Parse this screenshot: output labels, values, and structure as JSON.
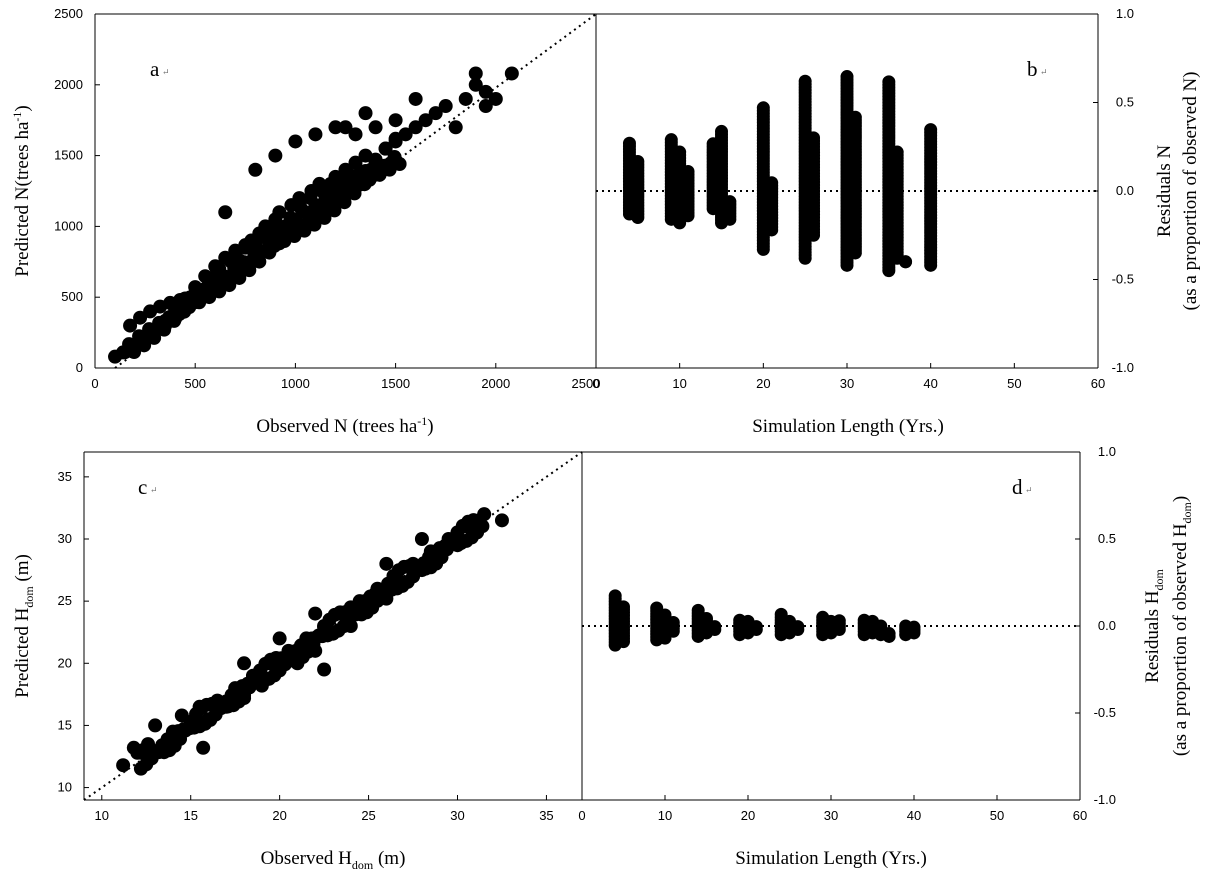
{
  "chart_data": [
    {
      "id": "a",
      "type": "scatter",
      "panel_label": "a",
      "xlabel": "Observed N (trees ha",
      "xlabel_sup": "-1",
      "xlabel_end": ")",
      "ylabel": "Predicted N(trees ha",
      "ylabel_sup": "-1",
      "ylabel_end": ")",
      "xlim": [
        0,
        2500
      ],
      "ylim": [
        0,
        2500
      ],
      "xticks": [
        "0",
        "500",
        "1000",
        "1500",
        "2000",
        "2500"
      ],
      "yticks": [
        "0",
        "500",
        "1000",
        "1500",
        "2000",
        "2500"
      ],
      "reference_line": {
        "style": "dotted",
        "from": [
          100,
          0
        ],
        "to": [
          2500,
          2500
        ]
      },
      "points": [
        [
          100,
          80
        ],
        [
          140,
          110
        ],
        [
          180,
          150
        ],
        [
          220,
          190
        ],
        [
          260,
          230
        ],
        [
          300,
          260
        ],
        [
          350,
          300
        ],
        [
          400,
          350
        ],
        [
          420,
          380
        ],
        [
          450,
          430
        ],
        [
          480,
          460
        ],
        [
          500,
          520
        ],
        [
          520,
          500
        ],
        [
          550,
          560
        ],
        [
          580,
          600
        ],
        [
          600,
          650
        ],
        [
          620,
          700
        ],
        [
          650,
          640
        ],
        [
          680,
          750
        ],
        [
          700,
          800
        ],
        [
          720,
          760
        ],
        [
          750,
          850
        ],
        [
          780,
          900
        ],
        [
          800,
          870
        ],
        [
          820,
          950
        ],
        [
          850,
          1000
        ],
        [
          880,
          960
        ],
        [
          900,
          1050
        ],
        [
          920,
          1100
        ],
        [
          950,
          1000
        ],
        [
          980,
          1150
        ],
        [
          1000,
          1050
        ],
        [
          1020,
          1200
        ],
        [
          1050,
          1100
        ],
        [
          1080,
          1250
        ],
        [
          1100,
          1150
        ],
        [
          1120,
          1300
        ],
        [
          1150,
          1200
        ],
        [
          1180,
          1250
        ],
        [
          1200,
          1350
        ],
        [
          1220,
          1300
        ],
        [
          1250,
          1400
        ],
        [
          1280,
          1300
        ],
        [
          1300,
          1450
        ],
        [
          1320,
          1350
        ],
        [
          1350,
          1500
        ],
        [
          1380,
          1400
        ],
        [
          1400,
          1450
        ],
        [
          1450,
          1550
        ],
        [
          1500,
          1600
        ],
        [
          1550,
          1650
        ],
        [
          1600,
          1700
        ],
        [
          1650,
          1750
        ],
        [
          1700,
          1800
        ],
        [
          1750,
          1850
        ],
        [
          1800,
          1700
        ],
        [
          1850,
          1900
        ],
        [
          1900,
          2000
        ],
        [
          1950,
          1950
        ],
        [
          2000,
          1900
        ],
        [
          2080,
          2080
        ],
        [
          650,
          1100
        ],
        [
          800,
          1400
        ],
        [
          900,
          1500
        ],
        [
          1000,
          1600
        ],
        [
          1100,
          1650
        ],
        [
          1200,
          1700
        ],
        [
          1350,
          1800
        ],
        [
          1500,
          1750
        ],
        [
          1600,
          1900
        ],
        [
          1900,
          2080
        ],
        [
          1950,
          1850
        ],
        [
          1250,
          1700
        ],
        [
          1300,
          1650
        ],
        [
          1400,
          1700
        ]
      ],
      "point_count_note": ""
    },
    {
      "id": "b",
      "type": "scatter",
      "panel_label": "b",
      "xlabel": "Simulation Length (Yrs.)",
      "ylabel": "Residuals N",
      "ylabel2": "(as a proportion of observed N)",
      "xlim": [
        0,
        60
      ],
      "ylim": [
        -1.0,
        1.0
      ],
      "xticks": [
        "0",
        "10",
        "20",
        "30",
        "40",
        "50",
        "60"
      ],
      "yticks": [
        "-1.0",
        "-0.5",
        "0.0",
        "0.5",
        "1.0"
      ],
      "reference_line": {
        "style": "dotted",
        "y": 0.0
      },
      "columns": [
        {
          "x": 4,
          "min": -0.13,
          "max": 0.27
        },
        {
          "x": 5,
          "min": -0.15,
          "max": 0.18
        },
        {
          "x": 9,
          "min": -0.16,
          "max": 0.3
        },
        {
          "x": 10,
          "min": -0.18,
          "max": 0.23
        },
        {
          "x": 11,
          "min": -0.14,
          "max": 0.12
        },
        {
          "x": 14,
          "min": -0.1,
          "max": 0.27
        },
        {
          "x": 15,
          "min": -0.18,
          "max": 0.35
        },
        {
          "x": 16,
          "min": -0.16,
          "max": -0.05
        },
        {
          "x": 20,
          "min": -0.33,
          "max": 0.47
        },
        {
          "x": 21,
          "min": -0.22,
          "max": 0.05
        },
        {
          "x": 25,
          "min": -0.38,
          "max": 0.62
        },
        {
          "x": 26,
          "min": -0.25,
          "max": 0.3
        },
        {
          "x": 30,
          "min": -0.42,
          "max": 0.66
        },
        {
          "x": 31,
          "min": -0.35,
          "max": 0.42
        },
        {
          "x": 35,
          "min": -0.45,
          "max": 0.63
        },
        {
          "x": 36,
          "min": -0.38,
          "max": 0.22
        },
        {
          "x": 37,
          "min": -0.4,
          "max": -0.4
        },
        {
          "x": 40,
          "min": -0.42,
          "max": 0.36
        }
      ]
    },
    {
      "id": "c",
      "type": "scatter",
      "panel_label": "c",
      "xlabel": "Observed H",
      "xlabel_sub": "dom",
      "xlabel_end": " (m)",
      "ylabel": "Predicted H",
      "ylabel_sub": "dom",
      "ylabel_end": " (m)",
      "xlim": [
        9,
        37
      ],
      "ylim": [
        9,
        37
      ],
      "xticks": [
        "10",
        "15",
        "20",
        "25",
        "30",
        "35"
      ],
      "yticks": [
        "10",
        "15",
        "20",
        "25",
        "30",
        "35"
      ],
      "reference_line": {
        "style": "dotted",
        "from": [
          9,
          9
        ],
        "to": [
          37,
          37
        ]
      },
      "points": [
        [
          11.2,
          11.8
        ],
        [
          11.8,
          13.2
        ],
        [
          12.2,
          12.8
        ],
        [
          12.6,
          13.5
        ],
        [
          13,
          15
        ],
        [
          13.5,
          13.2
        ],
        [
          14,
          14.5
        ],
        [
          14.5,
          15.8
        ],
        [
          15,
          14.8
        ],
        [
          15.5,
          16.5
        ],
        [
          15.7,
          13.2
        ],
        [
          16,
          15.5
        ],
        [
          16.5,
          17
        ],
        [
          17,
          16.5
        ],
        [
          17.5,
          18
        ],
        [
          18,
          17.2
        ],
        [
          18.5,
          19
        ],
        [
          19,
          18.2
        ],
        [
          19.5,
          20
        ],
        [
          20,
          19.5
        ],
        [
          20.5,
          21
        ],
        [
          21,
          20
        ],
        [
          21.5,
          22
        ],
        [
          22,
          21
        ],
        [
          22.5,
          23
        ],
        [
          22.5,
          19.5
        ],
        [
          23,
          22.5
        ],
        [
          23.5,
          24
        ],
        [
          24,
          23
        ],
        [
          24.5,
          25
        ],
        [
          25,
          24.5
        ],
        [
          25.5,
          26
        ],
        [
          26,
          25.2
        ],
        [
          26.5,
          27
        ],
        [
          27,
          26.5
        ],
        [
          27.5,
          28
        ],
        [
          28,
          27.5
        ],
        [
          28.5,
          29
        ],
        [
          29,
          28.5
        ],
        [
          29.5,
          30
        ],
        [
          30,
          29.5
        ],
        [
          30.5,
          31
        ],
        [
          31,
          30.5
        ],
        [
          31.5,
          32
        ],
        [
          32.5,
          31.5
        ],
        [
          18,
          20
        ],
        [
          20,
          22
        ],
        [
          22,
          24
        ],
        [
          24,
          24.5
        ],
        [
          26,
          28
        ],
        [
          28,
          30
        ]
      ]
    },
    {
      "id": "d",
      "type": "scatter",
      "panel_label": "d",
      "xlabel": "Simulation Length (Yrs.)",
      "ylabel": "Residuals H",
      "ylabel_sub": "dom",
      "ylabel2": "(as a proportion of observed H",
      "ylabel2_sub": "dom",
      "ylabel2_end": ")",
      "xlim": [
        0,
        60
      ],
      "ylim": [
        -1.0,
        1.0
      ],
      "xticks": [
        "0",
        "10",
        "20",
        "30",
        "40",
        "50",
        "60"
      ],
      "yticks": [
        "-1.0",
        "-0.5",
        "0.0",
        "0.5",
        "1.0"
      ],
      "reference_line": {
        "style": "dotted",
        "y": 0.0
      },
      "columns": [
        {
          "x": 4,
          "min": -0.11,
          "max": 0.18
        },
        {
          "x": 5,
          "min": -0.09,
          "max": 0.12
        },
        {
          "x": 9,
          "min": -0.08,
          "max": 0.11
        },
        {
          "x": 10,
          "min": -0.07,
          "max": 0.07
        },
        {
          "x": 11,
          "min": -0.03,
          "max": 0.02
        },
        {
          "x": 14,
          "min": -0.06,
          "max": 0.09
        },
        {
          "x": 15,
          "min": -0.04,
          "max": 0.05
        },
        {
          "x": 16,
          "min": -0.02,
          "max": 0.01
        },
        {
          "x": 19,
          "min": -0.05,
          "max": 0.04
        },
        {
          "x": 20,
          "min": -0.04,
          "max": 0.03
        },
        {
          "x": 21,
          "min": -0.02,
          "max": 0.01
        },
        {
          "x": 24,
          "min": -0.05,
          "max": 0.07
        },
        {
          "x": 25,
          "min": -0.04,
          "max": 0.03
        },
        {
          "x": 26,
          "min": -0.02,
          "max": 0.01
        },
        {
          "x": 29,
          "min": -0.05,
          "max": 0.06
        },
        {
          "x": 30,
          "min": -0.04,
          "max": 0.03
        },
        {
          "x": 31,
          "min": -0.02,
          "max": 0.03
        },
        {
          "x": 34,
          "min": -0.05,
          "max": 0.04
        },
        {
          "x": 35,
          "min": -0.04,
          "max": 0.03
        },
        {
          "x": 36,
          "min": -0.05,
          "max": 0.0
        },
        {
          "x": 37,
          "min": -0.06,
          "max": -0.04
        },
        {
          "x": 39,
          "min": -0.05,
          "max": 0.0
        },
        {
          "x": 40,
          "min": -0.04,
          "max": 0.0
        }
      ]
    }
  ],
  "styles": {
    "marker_color": "#000000",
    "axis_color": "#000000",
    "background": "#ffffff"
  }
}
